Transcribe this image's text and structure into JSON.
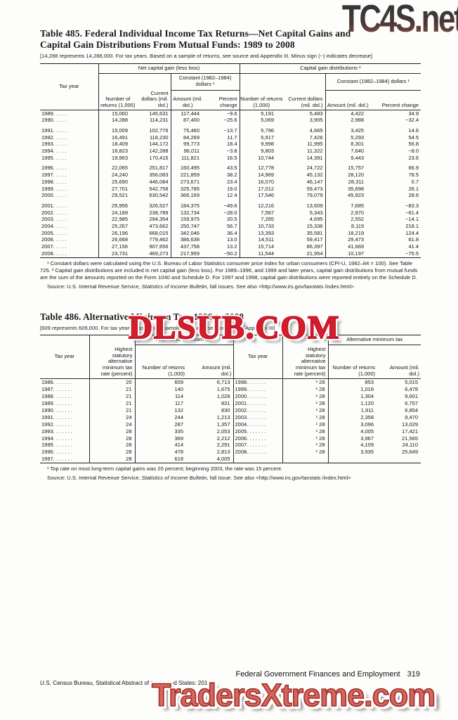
{
  "watermarks": {
    "top": "TC4S.net",
    "middle": "DLSUB.COM",
    "bottom": "TradersXtreme.com"
  },
  "table485": {
    "title_line1": "Table 485. Federal Individual Income Tax Returns—Net Capital Gains and",
    "title_line2": "Capital Gain Distributions From Mutual Funds: 1989 to 2008",
    "bracket_note": "[14,288 represents 14,288,000. For tax years. Based on a sample of returns, see source and Appendix III. Minus sign (−) indicates decrease]",
    "headers": {
      "tax_year": "Tax year",
      "group1": "Net capital gain (less loss)",
      "group2": "Capital gain distributions ²",
      "constant": "Constant (1982–1984) dollars ¹",
      "number": "Number of returns (1,000)",
      "current": "Current dollars (mil. dol.)",
      "amount": "Amount (mil. dol.)",
      "percent": "Percent change"
    },
    "row_groups": [
      [
        [
          "1989. . . . .",
          "15,060",
          "145,631",
          "117,444",
          "−9.6",
          "5,191",
          "5,483",
          "4,422",
          "34.9"
        ],
        [
          "1990. . . . .",
          "14,288",
          "114,231",
          "87,400",
          "−25.6",
          "5,069",
          "3,905",
          "2,988",
          "−32.4"
        ]
      ],
      [
        [
          "1991. . . . .",
          "15,009",
          "102,776",
          "75,460",
          "−13.7",
          "5,796",
          "4,665",
          "3,425",
          "14.6"
        ],
        [
          "1992. . . . .",
          "16,491",
          "118,230",
          "84,269",
          "11.7",
          "5,917",
          "7,426",
          "5,293",
          "54.5"
        ],
        [
          "1993. . . . .",
          "18,409",
          "144,172",
          "99,773",
          "18.4",
          "9,998",
          "11,995",
          "8,301",
          "56.8"
        ],
        [
          "1994. . . . .",
          "18,823",
          "142,288",
          "96,011",
          "−3.8",
          "9,803",
          "11,322",
          "7,640",
          "−8.0"
        ],
        [
          "1995. . . . .",
          "19,963",
          "170,415",
          "111,821",
          "16.5",
          "10,744",
          "14,391",
          "9,443",
          "23.6"
        ]
      ],
      [
        [
          "1996. . . . .",
          "22,065",
          "251,817",
          "160,495",
          "43.5",
          "12,778",
          "24,722",
          "15,757",
          "66.9"
        ],
        [
          "1997. . . . .",
          "24,240",
          "356,083",
          "221,859",
          "38.2",
          "14,969",
          "45,132",
          "28,120",
          "78.5"
        ],
        [
          "1998. . . . .",
          "25,690",
          "446,084",
          "273,671",
          "23.4",
          "16,070",
          "46,147",
          "28,311",
          "0.7"
        ],
        [
          "1999. . . . .",
          "27,701",
          "542,758",
          "325,785",
          "19.0",
          "17,012",
          "59,473",
          "35,698",
          "26.1"
        ],
        [
          "2000. . . . .",
          "29,521",
          "630,542",
          "366,169",
          "12.4",
          "17,546",
          "79,079",
          "45,923",
          "28.6"
        ]
      ],
      [
        [
          "2001. . . . .",
          "25,956",
          "326,527",
          "184,375",
          "−49.6",
          "12,216",
          "13,609",
          "7,685",
          "−83.3"
        ],
        [
          "2002. . . . .",
          "24,189",
          "238,789",
          "132,734",
          "−28.0",
          "7,567",
          "5,343",
          "2,970",
          "−61.4"
        ],
        [
          "2003. . . . .",
          "22,985",
          "294,354",
          "159,975",
          "20.5",
          "7,265",
          "4,695",
          "2,552",
          "−14.1"
        ],
        [
          "2004. . . . .",
          "25,267",
          "473,662",
          "250,747",
          "56.7",
          "10,733",
          "15,336",
          "8,119",
          "218.1"
        ],
        [
          "2005. . . . .",
          "26,196",
          "668,015",
          "342,046",
          "36.4",
          "13,393",
          "35,581",
          "18,219",
          "124.4"
        ],
        [
          "2006. . . . .",
          "26,668",
          "779,462",
          "386,638",
          "13.0",
          "14,511",
          "59,417",
          "29,473",
          "61.8"
        ],
        [
          "2007. . . . .",
          "27,156",
          "907,656",
          "437,758",
          "13.2",
          "15,714",
          "86,397",
          "41,669",
          "41.4"
        ],
        [
          "2008. . . . .",
          "23,731",
          "469,273",
          "217,959",
          "−50.2",
          "11,544",
          "21,954",
          "10,197",
          "−75.5"
        ]
      ]
    ],
    "footnote": "¹ Constant dollars were calculated using the U.S. Bureau of Labor Statistics consumer price index for urban consumers (CPI-U, 1982–84 = 100). See Table 725. ² Capital gain distributions are included in net capital gain (less loss). For 1989–1996, and 1999 and later years, capital gain distributions from mutual funds are the sum of the amounts reported on the Form 1040 and Schedule D. For 1997 and 1998, capital gain distributions were reported entirely on the Schedule D.",
    "source_prefix": "Source: U.S. Internal Revenue Service, ",
    "source_italic": "Statistics of Income Bulletin",
    "source_suffix": ", fall issues. See also <http://www.irs.gov/taxstats /index.html>."
  },
  "table486": {
    "title": "Table 486. Alternative Minimum Tax: 1986 to 2008",
    "bracket_note": "[609 represents 609,000. For tax years. Based on a sample of returns, see source and Appendix III]",
    "headers": {
      "tax_year": "Tax year",
      "rate": "Highest statutory alternative minimum tax rate (percent)",
      "group": "Alternative minimum tax",
      "returns": "Number of returns (1,000)",
      "amount": "Amount (mil. dol.)"
    },
    "rows": [
      [
        "1986. . . . . . .",
        "20",
        "609",
        "6,713",
        "1998. . . . . . .",
        "¹ 28",
        "853",
        "5,015"
      ],
      [
        "1987. . . . . . .",
        "21",
        "140",
        "1,675",
        "1999. . . . . . .",
        "¹ 28",
        "1,018",
        "6,478"
      ],
      [
        "1988. . . . . . .",
        "21",
        "114",
        "1,028",
        "2000. . . . . . .",
        "¹ 28",
        "1,304",
        "9,601"
      ],
      [
        "1989. . . . . . .",
        "21",
        "117",
        "831",
        "2001. . . . . . .",
        "¹ 28",
        "1,120",
        "6,757"
      ],
      [
        "1990. . . . . . .",
        "21",
        "132",
        "830",
        "2002. . . . . . .",
        "¹ 28",
        "1,911",
        "6,854"
      ],
      [
        "1991. . . . . . .",
        "24",
        "244",
        "1,213",
        "2003. . . . . . .",
        "¹ 28",
        "2,358",
        "9,470"
      ],
      [
        "1992. . . . . . .",
        "24",
        "287",
        "1,357",
        "2004. . . . . . .",
        "¹ 28",
        "3,096",
        "13,029"
      ],
      [
        "1993. . . . . . .",
        "28",
        "335",
        "2,053",
        "2005. . . . . . .",
        "¹ 28",
        "4,005",
        "17,421"
      ],
      [
        "1994. . . . . . .",
        "28",
        "369",
        "2,212",
        "2006. . . . . . .",
        "¹ 28",
        "3,967",
        "21,565"
      ],
      [
        "1995. . . . . . .",
        "28",
        "414",
        "2,291",
        "2007. . . . . . .",
        "¹ 28",
        "4,109",
        "24,110"
      ],
      [
        "1996. . . . . . .",
        "28",
        "478",
        "2,813",
        "2008. . . . . . .",
        "¹ 28",
        "3,935",
        "25,649"
      ],
      [
        "1997. . . . . . .",
        "28",
        "618",
        "4,005",
        "",
        "",
        "",
        ""
      ]
    ],
    "footnote": "¹ Top rate on most long-term capital gains was 20 percent; beginning 2003, the rate was 15 percent.",
    "source_prefix": "Source: U.S. Internal Revenue Service, ",
    "source_italic": "Statistics of Income Bulletin",
    "source_suffix": ", fall issue. See also <http://www.irs.gov/taxstats /index.html>"
  },
  "footer": {
    "chapter": "Federal Government Finances and Employment",
    "page_number": "319",
    "credit": "U.S. Census Bureau, Statistical Abstract of the United States: 2012"
  },
  "colors": {
    "watermark_red": "#d41f2b",
    "watermark_bottom_red": "#d5655d",
    "watermark_top_dark": "#3e3835",
    "rule_black": "#1a1a1a"
  }
}
